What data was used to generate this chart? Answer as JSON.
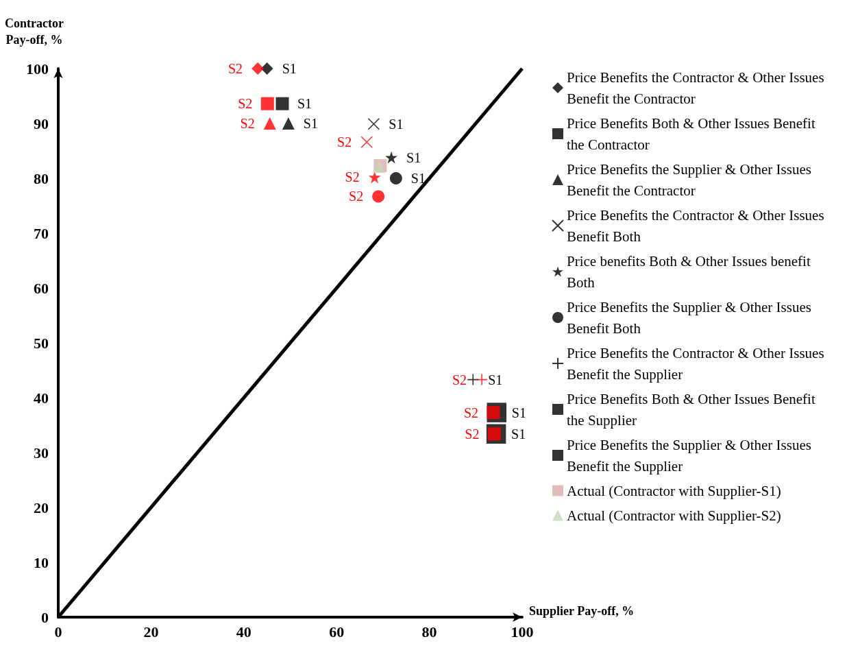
{
  "chart_data": {
    "type": "scatter",
    "xlabel": "Supplier Pay-off, %",
    "ylabel": "Contractor\nPay-off, %",
    "xlim": [
      0,
      100
    ],
    "xticks": [
      0,
      20,
      40,
      60,
      80,
      100
    ],
    "ylim": [
      0,
      100
    ],
    "yticks": [
      0,
      10,
      20,
      30,
      40,
      50,
      60,
      70,
      80,
      90,
      100
    ],
    "grid": false,
    "legend": "right",
    "series": [
      {
        "name": "Price Benefits the Contractor & Other Issues Benefit the Contractor",
        "marker": "diamond",
        "colors": [
          "#000000",
          "#ff0000"
        ],
        "x": [
          45,
          43
        ],
        "values": [
          100,
          100
        ]
      },
      {
        "name": "Price Benefits Both & Other Issues Benefit the Contractor",
        "marker": "square",
        "colors": [
          "#000000",
          "#ff0000"
        ],
        "x": [
          48.3,
          45.1
        ],
        "values": [
          93.6,
          93.6
        ]
      },
      {
        "name": "Price Benefits the Supplier & Other Issues Benefit the Contractor",
        "marker": "triangle",
        "colors": [
          "#000000",
          "#ff0000"
        ],
        "x": [
          49.6,
          45.6
        ],
        "values": [
          90,
          90
        ]
      },
      {
        "name": "Price Benefits the Contractor & Other Issues Benefit Both",
        "marker": "x",
        "colors": [
          "#000000",
          "#ff0000"
        ],
        "x": [
          68,
          66.5
        ],
        "values": [
          89.9,
          86.6
        ]
      },
      {
        "name": "Price benefits Both & Other Issues benefit Both",
        "marker": "star",
        "colors": [
          "#000000",
          "#ff0000"
        ],
        "x": [
          71.8,
          68.2
        ],
        "values": [
          83.8,
          80.2
        ]
      },
      {
        "name": "Price Benefits the Supplier & Other Issues Benefit Both",
        "marker": "circle",
        "colors": [
          "#000000",
          "#ff0000"
        ],
        "x": [
          72.8,
          69
        ],
        "values": [
          80,
          76.7
        ]
      },
      {
        "name": "Price Benefits the Contractor & Other Issues Benefit the Supplier",
        "marker": "cross",
        "colors": [
          "#000000",
          "#ff0000"
        ],
        "x": [
          89.4,
          91.3
        ],
        "values": [
          43.3,
          43.3
        ]
      },
      {
        "name": "Price Benefits Both & Other Issues Benefit the Supplier",
        "marker": "square",
        "colors": [
          "#000000",
          "#ff0000"
        ],
        "x": [
          94.5,
          93.8
        ],
        "values": [
          37.3,
          37.3
        ]
      },
      {
        "name": "Price Benefits the Supplier & Other Issues Benefit the Supplier",
        "marker": "square",
        "colors": [
          "#000000",
          "#ff0000"
        ],
        "x": [
          94.4,
          94
        ],
        "values": [
          33.4,
          33.4
        ]
      },
      {
        "name": "Actual (Contractor with Supplier-S1)",
        "marker": "square",
        "colors": [
          "#d9aeae"
        ],
        "x": [
          69.4
        ],
        "values": [
          82.3
        ]
      },
      {
        "name": "Actual (Contractor with Supplier-S2)",
        "marker": "triangle",
        "colors": [
          "#c6d8b4"
        ],
        "x": [
          69.1
        ],
        "values": [
          82.1
        ]
      },
      {
        "type": "line",
        "color": "#000000",
        "marker": "none",
        "x": [
          0,
          100
        ],
        "values": [
          0,
          100
        ]
      }
    ],
    "annotations": [
      {
        "text": "S1",
        "x": 45,
        "y": 100
      },
      {
        "text": "S2",
        "x": 43,
        "y": 100
      },
      {
        "text": "S1",
        "x": 48.3,
        "y": 93.6
      },
      {
        "text": "S2",
        "x": 45.1,
        "y": 93.6
      },
      {
        "text": "S1",
        "x": 49.6,
        "y": 90
      },
      {
        "text": "S2",
        "x": 45.6,
        "y": 90
      },
      {
        "text": "S1",
        "x": 68,
        "y": 89.9
      },
      {
        "text": "S2",
        "x": 66.5,
        "y": 86.6
      },
      {
        "text": "S1",
        "x": 71.8,
        "y": 83.8
      },
      {
        "text": "S2",
        "x": 68.2,
        "y": 80.2
      },
      {
        "text": "S1",
        "x": 72.8,
        "y": 80
      },
      {
        "text": "S2",
        "x": 69,
        "y": 76.7
      },
      {
        "text": "S1",
        "x": 89.4,
        "y": 43.3
      },
      {
        "text": "S2",
        "x": 91.3,
        "y": 43.3
      },
      {
        "text": "S1",
        "x": 94.5,
        "y": 37.3
      },
      {
        "text": "S2",
        "x": 93.8,
        "y": 37.3
      },
      {
        "text": "S1",
        "x": 94.4,
        "y": 33.4
      },
      {
        "text": "S2",
        "x": 94,
        "y": 33.4
      }
    ]
  }
}
